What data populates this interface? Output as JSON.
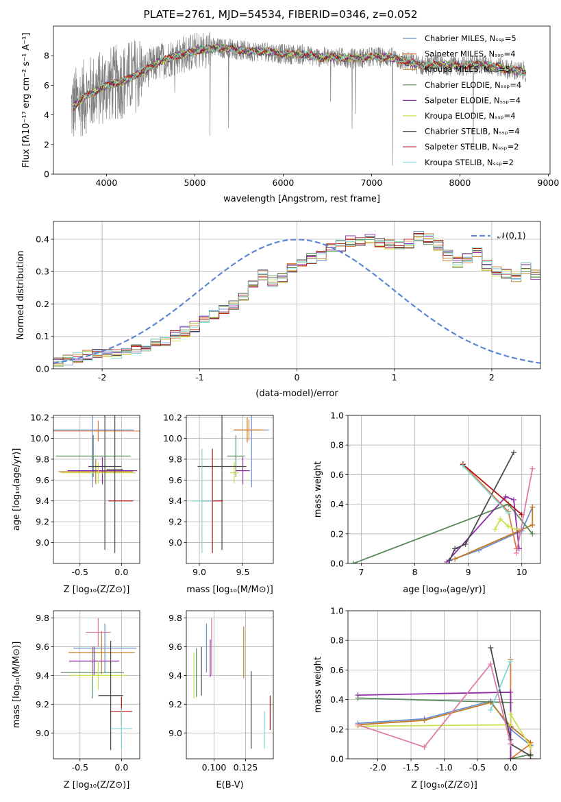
{
  "title": "PLATE=2761, MJD=54534, FIBERID=0346, z=0.052",
  "colors": {
    "chabrier_miles": "#6a8fd0",
    "salpeter_miles": "#e07a3a",
    "kroupa_miles": "#c47a22",
    "chabrier_elodie": "#5a8a5a",
    "salpeter_elodie": "#8f2aa8",
    "kroupa_elodie": "#c8e04a",
    "chabrier_stelib": "#4a4a4a",
    "salpeter_stelib": "#b01515",
    "kroupa_stelib": "#7fd6d6",
    "data": "#808080",
    "gauss": "#5b86d4",
    "pink": "#e07aa8"
  },
  "chart_data": [
    {
      "id": "spectrum",
      "type": "line",
      "xlabel": "wavelength [Angstrom, rest frame]",
      "ylabel": "Flux [fλ10⁻¹⁷ erg cm⁻² s⁻¹ A⁻¹]",
      "xlim": [
        3400,
        9020
      ],
      "ylim": [
        0,
        10
      ],
      "xticks": [
        4000,
        5000,
        6000,
        7000,
        8000,
        9000
      ],
      "yticks": [
        0,
        2,
        4,
        6,
        8
      ],
      "legend": [
        "Chabrier MILES, Nₛₛₚ=5",
        "Salpeter MILES, Nₛₛₚ=4",
        "Kroupa MILES, Nₛₛₚ=5",
        "Chabrier ELODIE, Nₛₛₚ=4",
        "Salpeter ELODIE, Nₛₛₚ=4",
        "Kroupa ELODIE, Nₛₛₚ=4",
        "Chabrier STELIB, Nₛₛₚ=4",
        "Salpeter STELIB, Nₛₛₚ=2",
        "Kroupa STELIB, Nₛₛₚ=2"
      ],
      "legend_location": "upper right",
      "continuum": [
        [
          3600,
          4.4
        ],
        [
          3700,
          5.0
        ],
        [
          3800,
          5.4
        ],
        [
          3900,
          5.7
        ],
        [
          4000,
          6.0
        ],
        [
          4200,
          6.3
        ],
        [
          4400,
          6.9
        ],
        [
          4600,
          7.6
        ],
        [
          4800,
          8.0
        ],
        [
          5000,
          8.3
        ],
        [
          5200,
          8.5
        ],
        [
          5400,
          8.5
        ],
        [
          5600,
          8.3
        ],
        [
          5800,
          8.3
        ],
        [
          6000,
          8.1
        ],
        [
          6200,
          8.1
        ],
        [
          6400,
          7.9
        ],
        [
          6600,
          7.9
        ],
        [
          6800,
          7.8
        ],
        [
          7000,
          7.9
        ],
        [
          7200,
          7.9
        ],
        [
          7400,
          7.6
        ],
        [
          7600,
          7.3
        ],
        [
          7800,
          7.4
        ],
        [
          8000,
          7.3
        ],
        [
          8200,
          7.4
        ],
        [
          8400,
          7.3
        ],
        [
          8600,
          7.0
        ],
        [
          8750,
          6.9
        ]
      ]
    },
    {
      "id": "residuals",
      "type": "bar",
      "xlabel": "(data-model)/error",
      "ylabel": "Normed distribution",
      "xlim": [
        -2.5,
        2.5
      ],
      "ylim": [
        0,
        0.455
      ],
      "xticks": [
        -2,
        -1,
        0,
        1,
        2
      ],
      "yticks": [
        0.0,
        0.1,
        0.2,
        0.3,
        0.4
      ],
      "legend": [
        "𝒩(0,1)"
      ],
      "bin_width": 0.1,
      "x_start": -2.5,
      "values": [
        0.025,
        0.028,
        0.035,
        0.04,
        0.045,
        0.048,
        0.05,
        0.052,
        0.058,
        0.065,
        0.075,
        0.088,
        0.1,
        0.115,
        0.13,
        0.15,
        0.165,
        0.185,
        0.2,
        0.22,
        0.26,
        0.29,
        0.27,
        0.28,
        0.31,
        0.33,
        0.34,
        0.35,
        0.37,
        0.38,
        0.395,
        0.39,
        0.4,
        0.39,
        0.385,
        0.38,
        0.39,
        0.41,
        0.4,
        0.38,
        0.35,
        0.33,
        0.34,
        0.36,
        0.32,
        0.3,
        0.29,
        0.28,
        0.31,
        0.29,
        0.25,
        0.22,
        0.2,
        0.17,
        0.14,
        0.12,
        0.1,
        0.088,
        0.076,
        0.065,
        0.055,
        0.05,
        0.045,
        0.04,
        0.034,
        0.03,
        0.028,
        0.026,
        0.024,
        0.022
      ]
    },
    {
      "id": "age_vs_Z",
      "type": "scatter",
      "xlabel": "Z [log₁₀(Z/Z⊙)]",
      "ylabel": "age  [log₁₀(age/yr)]",
      "xlim": [
        -0.82,
        0.22
      ],
      "ylim": [
        8.8,
        10.22
      ],
      "xticks": [
        -0.5,
        0.0
      ],
      "yticks": [
        9.0,
        9.2,
        9.4,
        9.6,
        9.8,
        10.0,
        10.2
      ],
      "points": [
        {
          "x": -0.35,
          "y": 10.08,
          "xerr": 0.5,
          "yerr": 0.55,
          "c": "chabrier_miles"
        },
        {
          "x": -0.28,
          "y": 10.07,
          "xerr": 0.55,
          "yerr": 0.1,
          "c": "salpeter_miles"
        },
        {
          "x": -0.31,
          "y": 9.68,
          "xerr": 0.45,
          "yerr": 0.12,
          "c": "kroupa_miles"
        },
        {
          "x": -0.34,
          "y": 9.83,
          "xerr": 0.45,
          "yerr": 0.2,
          "c": "chabrier_elodie"
        },
        {
          "x": -0.23,
          "y": 9.69,
          "xerr": 0.42,
          "yerr": 0.13,
          "c": "salpeter_elodie"
        },
        {
          "x": -0.28,
          "y": 9.67,
          "xerr": 0.45,
          "yerr": 0.1,
          "c": "kroupa_elodie"
        },
        {
          "x": -0.2,
          "y": 9.73,
          "xerr": 0.2,
          "yerr": 0.8,
          "c": "chabrier_stelib"
        },
        {
          "x": -0.01,
          "y": 9.4,
          "xerr": 0.15,
          "yerr": 0.0,
          "c": "salpeter_stelib"
        },
        {
          "x": -0.08,
          "y": 9.7,
          "xerr": 0.1,
          "yerr": 0.8,
          "c": "chabrier_stelib"
        }
      ]
    },
    {
      "id": "age_vs_mass",
      "type": "scatter",
      "xlabel": "mass [log₁₀(M/M⊙)]",
      "ylabel": "",
      "xlim": [
        8.85,
        9.85
      ],
      "ylim": [
        8.8,
        10.22
      ],
      "xticks": [
        9.0,
        9.5
      ],
      "yticks": [
        9.0,
        9.2,
        9.4,
        9.6,
        9.8,
        10.0,
        10.2
      ],
      "points": [
        {
          "x": 9.6,
          "y": 10.08,
          "xerr": 0.2,
          "yerr": 0.55,
          "c": "chabrier_miles"
        },
        {
          "x": 9.57,
          "y": 10.08,
          "xerr": 0.18,
          "yerr": 0.1,
          "c": "salpeter_miles"
        },
        {
          "x": 9.55,
          "y": 10.08,
          "xerr": 0.15,
          "yerr": 0.12,
          "c": "kroupa_miles"
        },
        {
          "x": 9.42,
          "y": 9.83,
          "xerr": 0.1,
          "yerr": 0.2,
          "c": "chabrier_elodie"
        },
        {
          "x": 9.5,
          "y": 9.69,
          "xerr": 0.08,
          "yerr": 0.13,
          "c": "salpeter_elodie"
        },
        {
          "x": 9.4,
          "y": 9.67,
          "xerr": 0.05,
          "yerr": 0.1,
          "c": "kroupa_elodie"
        },
        {
          "x": 9.26,
          "y": 9.73,
          "xerr": 0.28,
          "yerr": 0.8,
          "c": "chabrier_stelib"
        },
        {
          "x": 9.15,
          "y": 9.4,
          "xerr": 0.12,
          "yerr": 0.5,
          "c": "salpeter_stelib"
        },
        {
          "x": 9.03,
          "y": 9.4,
          "xerr": 0.12,
          "yerr": 0.5,
          "c": "kroupa_stelib"
        }
      ]
    },
    {
      "id": "weight_vs_age",
      "type": "line",
      "xlabel": "age  [log₁₀(age/yr)]",
      "ylabel": "mass weight",
      "xlim": [
        6.75,
        10.35
      ],
      "ylim": [
        0,
        1.0
      ],
      "xticks": [
        7,
        8,
        9,
        10
      ],
      "yticks": [
        0.0,
        0.2,
        0.4,
        0.6,
        0.8,
        1.0
      ],
      "series": [
        {
          "c": "chabrier_miles",
          "x": [
            8.65,
            9.2,
            10.0,
            10.2
          ],
          "y": [
            0.02,
            0.09,
            0.22,
            0.38
          ]
        },
        {
          "c": "salpeter_miles",
          "x": [
            8.9,
            9.75,
            9.9
          ],
          "y": [
            0.67,
            0.35,
            0.1
          ]
        },
        {
          "c": "kroupa_miles",
          "x": [
            8.75,
            9.95,
            10.2,
            10.2
          ],
          "y": [
            0.03,
            0.22,
            0.26,
            0.38
          ]
        },
        {
          "c": "chabrier_elodie",
          "x": [
            6.85,
            9.75,
            10.2
          ],
          "y": [
            0.0,
            0.4,
            0.2
          ]
        },
        {
          "c": "salpeter_elodie",
          "x": [
            8.6,
            9.7,
            9.85,
            9.95
          ],
          "y": [
            0.01,
            0.45,
            0.43,
            0.1
          ]
        },
        {
          "c": "kroupa_elodie",
          "x": [
            9.5,
            9.6,
            9.75,
            9.9
          ],
          "y": [
            0.23,
            0.3,
            0.25,
            0.23
          ]
        },
        {
          "c": "chabrier_stelib",
          "x": [
            8.65,
            8.75,
            8.95,
            9.85
          ],
          "y": [
            0.02,
            0.1,
            0.13,
            0.75
          ]
        },
        {
          "c": "salpeter_stelib",
          "x": [
            8.9,
            10.0
          ],
          "y": [
            0.67,
            0.33
          ]
        },
        {
          "c": "kroupa_stelib",
          "x": [
            8.9,
            9.75
          ],
          "y": [
            0.66,
            0.34
          ]
        },
        {
          "c": "pink",
          "x": [
            9.9,
            10.2
          ],
          "y": [
            0.07,
            0.64
          ]
        }
      ]
    },
    {
      "id": "mass_vs_Z",
      "type": "scatter",
      "xlabel": "Z [log₁₀(Z/Z⊙)]",
      "ylabel": "mass [log₁₀(M/M⊙)]",
      "xlim": [
        -0.82,
        0.22
      ],
      "ylim": [
        8.82,
        9.85
      ],
      "xticks": [
        -0.5,
        0.0
      ],
      "yticks": [
        9.0,
        9.2,
        9.4,
        9.6,
        9.8
      ],
      "points": [
        {
          "x": -0.2,
          "y": 9.59,
          "xerr": 0.38,
          "yerr": 0.17,
          "c": "chabrier_miles"
        },
        {
          "x": -0.24,
          "y": 9.56,
          "xerr": 0.4,
          "yerr": 0.15,
          "c": "kroupa_miles"
        },
        {
          "x": -0.35,
          "y": 9.42,
          "xerr": 0.38,
          "yerr": 0.18,
          "c": "chabrier_elodie"
        },
        {
          "x": -0.33,
          "y": 9.5,
          "xerr": 0.3,
          "yerr": 0.1,
          "c": "salpeter_elodie"
        },
        {
          "x": -0.28,
          "y": 9.4,
          "xerr": 0.35,
          "yerr": 0.1,
          "c": "kroupa_elodie"
        },
        {
          "x": -0.28,
          "y": 9.7,
          "xerr": 0.15,
          "yerr": 0.1,
          "c": "pink"
        },
        {
          "x": -0.13,
          "y": 9.26,
          "xerr": 0.15,
          "yerr": 0.38,
          "c": "chabrier_stelib"
        },
        {
          "x": 0.0,
          "y": 9.15,
          "xerr": 0.13,
          "yerr": 0.1,
          "c": "salpeter_stelib"
        },
        {
          "x": 0.0,
          "y": 9.03,
          "xerr": 0.13,
          "yerr": 0.14,
          "c": "kroupa_stelib"
        }
      ]
    },
    {
      "id": "mass_vs_ebv",
      "type": "scatter",
      "xlabel": "E(B-V)",
      "ylabel": "",
      "xlim": [
        0.078,
        0.147
      ],
      "ylim": [
        8.82,
        9.85
      ],
      "xticks": [
        0.1,
        0.125
      ],
      "yticks": [
        9.0,
        9.2,
        9.4,
        9.6,
        9.8
      ],
      "points": [
        {
          "x": 0.094,
          "y": 9.59,
          "xerr": 0,
          "yerr": 0.17,
          "c": "chabrier_miles"
        },
        {
          "x": 0.1235,
          "y": 9.56,
          "xerr": 0,
          "yerr": 0.18,
          "c": "kroupa_miles"
        },
        {
          "x": 0.086,
          "y": 9.42,
          "xerr": 0,
          "yerr": 0.17,
          "c": "chabrier_elodie"
        },
        {
          "x": 0.097,
          "y": 9.52,
          "xerr": 0,
          "yerr": 0.13,
          "c": "salpeter_elodie"
        },
        {
          "x": 0.084,
          "y": 9.4,
          "xerr": 0,
          "yerr": 0.16,
          "c": "kroupa_elodie"
        },
        {
          "x": 0.09,
          "y": 9.43,
          "xerr": 0,
          "yerr": 0.17,
          "c": "chabrier_stelib"
        },
        {
          "x": 0.098,
          "y": 9.6,
          "xerr": 0,
          "yerr": 0.2,
          "c": "pink"
        },
        {
          "x": 0.1295,
          "y": 9.16,
          "xerr": 0,
          "yerr": 0.27,
          "c": "chabrier_stelib"
        },
        {
          "x": 0.1445,
          "y": 9.14,
          "xerr": 0,
          "yerr": 0.12,
          "c": "salpeter_stelib"
        },
        {
          "x": 0.14,
          "y": 9.02,
          "xerr": 0,
          "yerr": 0.13,
          "c": "kroupa_stelib"
        }
      ]
    },
    {
      "id": "weight_vs_Z",
      "type": "line",
      "xlabel": "Z [log₁₀(Z/Z⊙)]",
      "ylabel": "mass weight",
      "xlim": [
        -2.45,
        0.45
      ],
      "ylim": [
        0,
        1.0
      ],
      "xticks": [
        -2.0,
        -1.5,
        -1.0,
        -0.5,
        0.0
      ],
      "yticks": [
        0.0,
        0.2,
        0.4,
        0.6,
        0.8,
        1.0
      ],
      "series": [
        {
          "c": "chabrier_miles",
          "x": [
            -2.3,
            -1.3,
            -0.3,
            0.0,
            0.3
          ],
          "y": [
            0.24,
            0.27,
            0.39,
            0.2,
            0.09
          ]
        },
        {
          "c": "salpeter_miles",
          "x": [
            0.0,
            0.0,
            0.3,
            0.3
          ],
          "y": [
            0.67,
            0.0,
            0.1,
            0.0
          ]
        },
        {
          "c": "kroupa_miles",
          "x": [
            -2.3,
            -1.3,
            -0.3,
            0.0,
            0.3
          ],
          "y": [
            0.23,
            0.26,
            0.38,
            0.22,
            0.11
          ]
        },
        {
          "c": "chabrier_elodie",
          "x": [
            -2.3,
            0.0,
            0.0,
            0.3
          ],
          "y": [
            0.41,
            0.38,
            0.0,
            0.03
          ]
        },
        {
          "c": "salpeter_elodie",
          "x": [
            -2.3,
            0.0,
            0.0
          ],
          "y": [
            0.43,
            0.45,
            0.0
          ]
        },
        {
          "c": "kroupa_elodie",
          "x": [
            -2.3,
            0.0,
            0.0,
            0.3
          ],
          "y": [
            0.22,
            0.23,
            0.3,
            0.08
          ]
        },
        {
          "c": "chabrier_stelib",
          "x": [
            -0.3,
            0.0,
            0.0,
            0.3
          ],
          "y": [
            0.75,
            0.13,
            0.1,
            0.02
          ]
        },
        {
          "c": "kroupa_stelib",
          "x": [
            -0.3,
            0.0
          ],
          "y": [
            0.33,
            0.66
          ]
        },
        {
          "c": "pink",
          "x": [
            -2.3,
            -1.3,
            -0.3,
            0.0
          ],
          "y": [
            0.23,
            0.08,
            0.64,
            0.1
          ]
        }
      ]
    }
  ]
}
